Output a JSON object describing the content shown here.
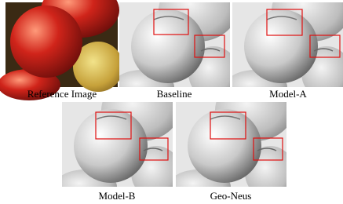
{
  "panels": [
    {
      "label": "Reference Image"
    },
    {
      "label": "Baseline"
    },
    {
      "label": "Model-A"
    },
    {
      "label": "Model-B"
    },
    {
      "label": "Geo-Neus"
    }
  ]
}
